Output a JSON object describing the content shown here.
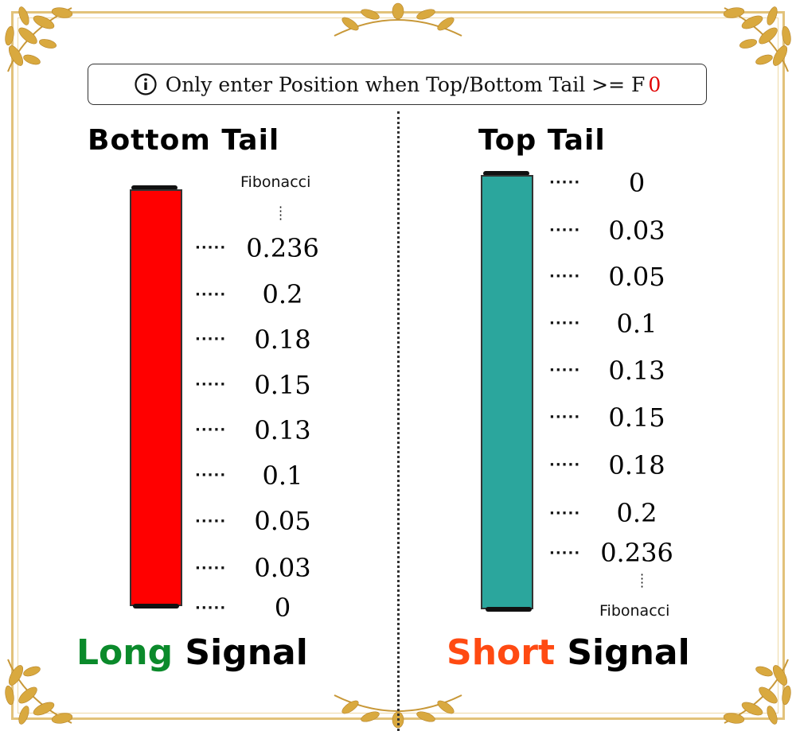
{
  "colors": {
    "long": "#0b8a2b",
    "short": "#ff4a12",
    "bearish_candle": "#ff0000",
    "bullish_candle": "#2ba69d",
    "info_value": "#e00000",
    "frame_gold": "#d9b25a"
  },
  "info": {
    "icon": "info-circle-icon",
    "text": "Only enter Position when Top/Bottom Tail >= F",
    "value": "0"
  },
  "left": {
    "title": "Bottom Tail",
    "fib_label": "Fibonacci",
    "levels": [
      "0.236",
      "0.2",
      "0.18",
      "0.15",
      "0.13",
      "0.1",
      "0.05",
      "0.03",
      "0"
    ],
    "signal_word": "Long",
    "signal_suffix": "Signal"
  },
  "right": {
    "title": "Top Tail",
    "fib_label": "Fibonacci",
    "levels": [
      "0",
      "0.03",
      "0.05",
      "0.1",
      "0.13",
      "0.15",
      "0.18",
      "0.2",
      "0.236"
    ],
    "signal_word": "Short",
    "signal_suffix": "Signal"
  }
}
